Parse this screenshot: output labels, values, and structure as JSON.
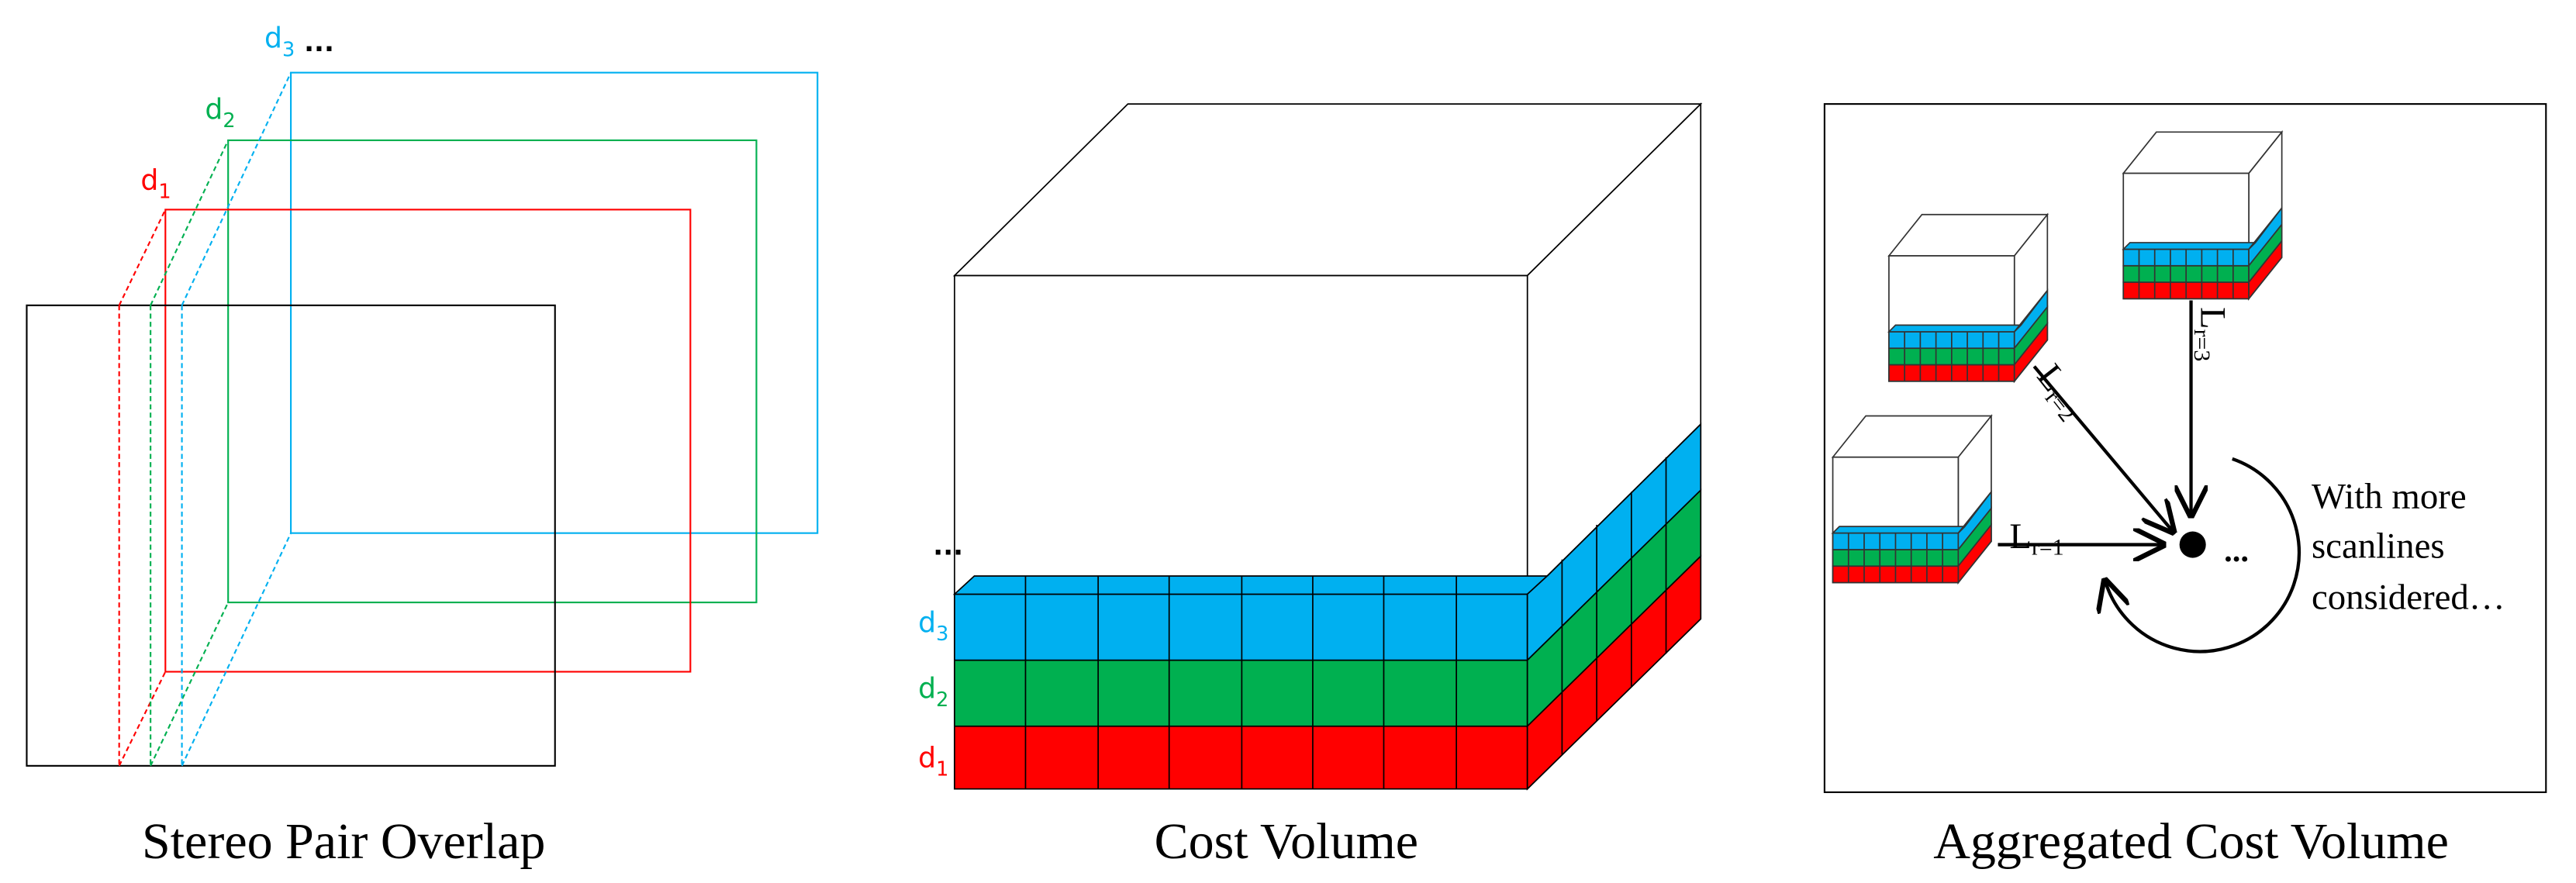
{
  "panels": [
    {
      "title": "Stereo Pair Overlap",
      "labels": [
        {
          "base": "d",
          "sub": "1"
        },
        {
          "base": "d",
          "sub": "2"
        },
        {
          "base": "d",
          "sub": "3"
        }
      ],
      "ellipsis": "..."
    },
    {
      "title": "Cost Volume",
      "labels": [
        {
          "base": "d",
          "sub": "1"
        },
        {
          "base": "d",
          "sub": "2"
        },
        {
          "base": "d",
          "sub": "3"
        }
      ],
      "ellipsis": "..."
    },
    {
      "title": "Aggregated Cost Volume",
      "paths": [
        {
          "base": "L",
          "sub": "r=1"
        },
        {
          "base": "L",
          "sub": "r=2"
        },
        {
          "base": "L",
          "sub": "r=3"
        }
      ],
      "ellipsis": "...",
      "note": [
        "With more",
        "scanlines",
        "considered…"
      ]
    }
  ]
}
